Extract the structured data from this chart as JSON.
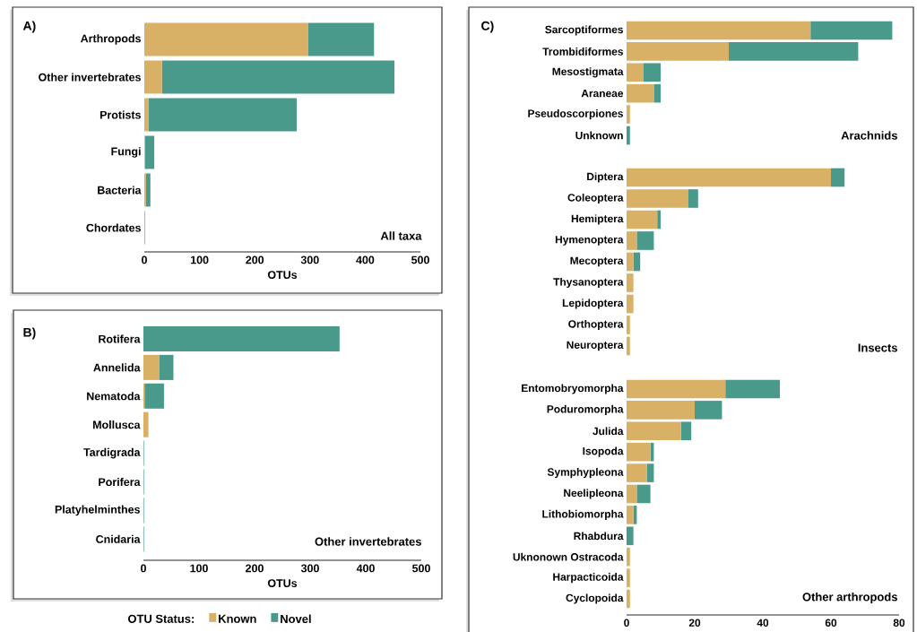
{
  "chart_data": [
    {
      "type": "bar",
      "orientation": "horizontal",
      "stacked": true,
      "title": "A)",
      "categories": [
        "Arthropods",
        "Other invertebrates",
        "Protists",
        "Fungi",
        "Bacteria",
        "Chordates"
      ],
      "series": [
        {
          "color": "#d8b166",
          "values": [
            297,
            32,
            8,
            1,
            3,
            0
          ]
        },
        {
          "color": "#4a9a8c",
          "values": [
            119,
            421,
            268,
            17,
            8,
            1
          ]
        }
      ],
      "xlim": [
        0,
        500
      ],
      "xticks": [
        0,
        100,
        200,
        300,
        400,
        500
      ],
      "xlabel": "OTUs",
      "annotations": [
        "All taxa"
      ]
    },
    {
      "type": "bar",
      "orientation": "horizontal",
      "stacked": true,
      "title": "B)",
      "categories": [
        "Rotifera",
        "Annelida",
        "Nematoda",
        "Mollusca",
        "Tardigrada",
        "Porifera",
        "Platyhelminthes",
        "Cnidaria"
      ],
      "series": [
        {
          "name": "Known",
          "color": "#d8b166",
          "values": [
            0,
            29,
            2,
            9,
            0,
            0,
            0,
            0
          ]
        },
        {
          "name": "Novel",
          "color": "#4a9a8c",
          "values": [
            353,
            25,
            35,
            0,
            1,
            1,
            1,
            1
          ]
        }
      ],
      "xlim": [
        0,
        500
      ],
      "xticks": [
        0,
        100,
        200,
        300,
        400,
        500
      ],
      "xlabel": "OTUs",
      "annotations": [
        "Other invertebrates"
      ],
      "legend": "bottom",
      "legend_title": "OTU Status:"
    },
    {
      "type": "bar",
      "orientation": "horizontal",
      "stacked": true,
      "title": "C)",
      "categories": [
        "Sarcoptiformes",
        "Trombidiformes",
        "Mesostigmata",
        "Araneae",
        "Pseudoscorpiones",
        "Unknown"
      ],
      "series": [
        {
          "color": "#d8b166",
          "values": [
            54,
            30,
            5,
            8,
            1,
            0
          ]
        },
        {
          "color": "#4a9a8c",
          "values": [
            24,
            38,
            5,
            2,
            0,
            1
          ]
        }
      ],
      "xlim": [
        0,
        80
      ],
      "tick_labels": "y",
      "annotations": [
        "Arachnids"
      ]
    },
    {
      "type": "bar",
      "orientation": "horizontal",
      "stacked": true,
      "categories": [
        "Diptera",
        "Coleoptera",
        "Hemiptera",
        "Hymenoptera",
        "Mecoptera",
        "Thysanoptera",
        "Lepidoptera",
        "Orthoptera",
        "Neuroptera"
      ],
      "series": [
        {
          "color": "#d8b166",
          "values": [
            60,
            18,
            9,
            3,
            2,
            2,
            2,
            1,
            1
          ]
        },
        {
          "color": "#4a9a8c",
          "values": [
            4,
            3,
            1,
            5,
            2,
            0,
            0,
            0,
            0
          ]
        }
      ],
      "xlim": [
        0,
        80
      ],
      "tick_labels": "y",
      "annotations": [
        "Insects"
      ]
    },
    {
      "type": "bar",
      "orientation": "horizontal",
      "stacked": true,
      "categories": [
        "Entomobryomorpha",
        "Poduromorpha",
        "Julida",
        "Isopoda",
        "Symphypleona",
        "Neelipleona",
        "Lithobiomorpha",
        "Rhabdura",
        "Uknonown Ostracoda",
        "Harpacticoida",
        "Cyclopoida"
      ],
      "series": [
        {
          "color": "#d8b166",
          "values": [
            29,
            20,
            16,
            7,
            6,
            3,
            2,
            0,
            1,
            1,
            1
          ]
        },
        {
          "color": "#4a9a8c",
          "values": [
            16,
            8,
            3,
            1,
            2,
            4,
            1,
            2,
            0,
            0,
            0
          ]
        }
      ],
      "xlim": [
        0,
        80
      ],
      "xticks": [
        0,
        20,
        40,
        60,
        80
      ],
      "annotations": [
        "Other arthropods"
      ]
    }
  ]
}
